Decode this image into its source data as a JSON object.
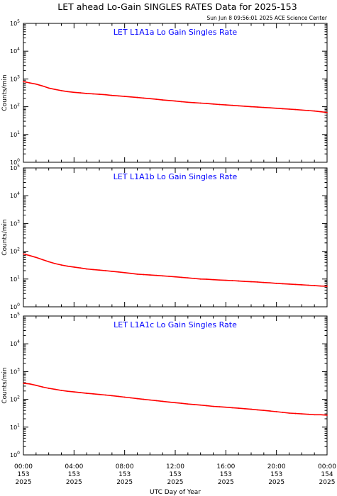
{
  "title": "LET ahead Lo-Gain SINGLES RATES Data for 2025-153",
  "timestamp": "Sun Jun  8 09:56:01 2025 ACE Science Center",
  "xlabel": "UTC Day of Year",
  "ylabel": "Counts/min",
  "x_ticks": [
    {
      "time": "00:00",
      "doy": "153",
      "year": "2025"
    },
    {
      "time": "04:00",
      "doy": "153",
      "year": "2025"
    },
    {
      "time": "08:00",
      "doy": "153",
      "year": "2025"
    },
    {
      "time": "12:00",
      "doy": "153",
      "year": "2025"
    },
    {
      "time": "16:00",
      "doy": "153",
      "year": "2025"
    },
    {
      "time": "20:00",
      "doy": "153",
      "year": "2025"
    },
    {
      "time": "00:00",
      "doy": "154",
      "year": "2025"
    }
  ],
  "y_ticks": [
    {
      "base": "10",
      "exp": "0"
    },
    {
      "base": "10",
      "exp": "1"
    },
    {
      "base": "10",
      "exp": "2"
    },
    {
      "base": "10",
      "exp": "3"
    },
    {
      "base": "10",
      "exp": "4"
    },
    {
      "base": "10",
      "exp": "5"
    }
  ],
  "colors": {
    "series": "#ff0000",
    "panel_title": "#0000ff",
    "axes": "#000000"
  },
  "chart_data": [
    {
      "type": "line",
      "title": "LET L1A1a Lo Gain Singles Rate",
      "x_units": "hours UTC on day 153",
      "xlim": [
        0,
        24
      ],
      "ylim": [
        1,
        100000
      ],
      "yscale": "log",
      "series": [
        {
          "x": [
            0,
            0.5,
            1,
            1.5,
            2,
            2.5,
            3,
            3.5,
            4,
            4.5,
            5,
            5.5,
            6,
            6.5,
            7,
            7.5,
            8,
            8.5,
            9,
            9.5,
            10,
            10.5,
            11,
            11.5,
            12,
            12.5,
            13,
            13.5,
            14,
            14.5,
            15,
            15.5,
            16,
            16.5,
            17,
            17.5,
            18,
            18.5,
            19,
            19.5,
            20,
            20.5,
            21,
            21.5,
            22,
            22.5,
            23,
            23.5,
            24
          ],
          "y": [
            800,
            720,
            650,
            560,
            470,
            420,
            380,
            350,
            330,
            315,
            300,
            290,
            280,
            270,
            255,
            245,
            235,
            225,
            215,
            205,
            195,
            185,
            175,
            168,
            160,
            152,
            145,
            140,
            135,
            130,
            125,
            120,
            116,
            112,
            108,
            104,
            100,
            97,
            94,
            91,
            88,
            85,
            82,
            79,
            76,
            73,
            70,
            66,
            62
          ]
        }
      ]
    },
    {
      "type": "line",
      "title": "LET L1A1b Lo Gain Singles Rate",
      "x_units": "hours UTC on day 153",
      "xlim": [
        0,
        24
      ],
      "ylim": [
        1,
        100000
      ],
      "yscale": "log",
      "series": [
        {
          "x": [
            0,
            0.5,
            1,
            1.5,
            2,
            2.5,
            3,
            3.5,
            4,
            4.5,
            5,
            5.5,
            6,
            6.5,
            7,
            7.5,
            8,
            8.5,
            9,
            9.5,
            10,
            10.5,
            11,
            11.5,
            12,
            12.5,
            13,
            13.5,
            14,
            14.5,
            15,
            15.5,
            16,
            16.5,
            17,
            17.5,
            18,
            18.5,
            19,
            19.5,
            20,
            20.5,
            21,
            21.5,
            22,
            22.5,
            23,
            23.5,
            24
          ],
          "y": [
            80,
            70,
            60,
            50,
            42,
            36,
            32,
            29,
            27,
            25,
            23,
            22,
            21,
            20,
            19,
            18,
            17,
            16,
            15,
            14.5,
            14,
            13.5,
            13,
            12.5,
            12,
            11.5,
            11,
            10.5,
            10,
            9.8,
            9.5,
            9.2,
            9,
            8.8,
            8.5,
            8.2,
            8,
            7.8,
            7.5,
            7.3,
            7,
            6.8,
            6.6,
            6.4,
            6.2,
            6,
            5.8,
            5.6,
            5.5
          ]
        }
      ]
    },
    {
      "type": "line",
      "title": "LET L1A1c Lo Gain Singles Rate",
      "x_units": "hours UTC on day 153",
      "xlim": [
        0,
        24
      ],
      "ylim": [
        1,
        100000
      ],
      "yscale": "log",
      "series": [
        {
          "x": [
            0,
            0.5,
            1,
            1.5,
            2,
            2.5,
            3,
            3.5,
            4,
            4.5,
            5,
            5.5,
            6,
            6.5,
            7,
            7.5,
            8,
            8.5,
            9,
            9.5,
            10,
            10.5,
            11,
            11.5,
            12,
            12.5,
            13,
            13.5,
            14,
            14.5,
            15,
            15.5,
            16,
            16.5,
            17,
            17.5,
            18,
            18.5,
            19,
            19.5,
            20,
            20.5,
            21,
            21.5,
            22,
            22.5,
            23,
            23.5,
            24
          ],
          "y": [
            380,
            360,
            320,
            280,
            250,
            230,
            210,
            195,
            185,
            175,
            165,
            158,
            150,
            143,
            136,
            128,
            120,
            113,
            106,
            100,
            95,
            90,
            85,
            80,
            76,
            72,
            68,
            65,
            62,
            59,
            56,
            54,
            52,
            50,
            48,
            46,
            44,
            42,
            40,
            38,
            36,
            34,
            32,
            31,
            30,
            29,
            28,
            28,
            27
          ]
        }
      ]
    }
  ]
}
